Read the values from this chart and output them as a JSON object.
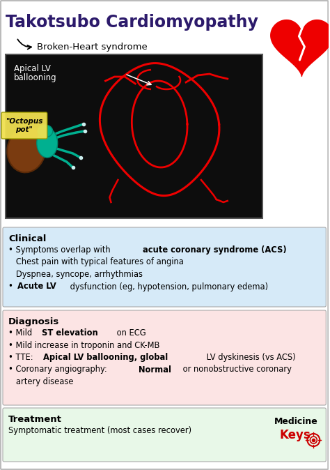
{
  "title": "Takotsubo Cardiomyopathy",
  "title_color": "#2c1a6b",
  "bg_color": "#ffffff",
  "border_color": "#bbbbbb",
  "image_label_line1": "Apical LV",
  "image_label_line2": "ballooning",
  "octopus_label": "\"Octopus\npot\"",
  "sections": [
    {
      "title": "Clinical",
      "bg_color": "#d6eaf8",
      "bullets": [
        [
          {
            "text": "• Symptoms overlap with ",
            "bold": false
          },
          {
            "text": "acute coronary syndrome (ACS)",
            "bold": true
          }
        ],
        [
          {
            "text": "   Chest pain with typical features of angina",
            "bold": false
          }
        ],
        [
          {
            "text": "   Dyspnea, syncope, arrhythmias",
            "bold": false
          }
        ],
        [
          {
            "text": "• ",
            "bold": false
          },
          {
            "text": "Acute LV",
            "bold": true
          },
          {
            "text": " dysfunction (eg, hypotension, pulmonary edema)",
            "bold": false
          }
        ]
      ]
    },
    {
      "title": "Diagnosis",
      "bg_color": "#fce4e4",
      "bullets": [
        [
          {
            "text": "• Mild ",
            "bold": false
          },
          {
            "text": "ST elevation",
            "bold": true
          },
          {
            "text": " on ECG",
            "bold": false
          }
        ],
        [
          {
            "text": "• Mild increase in troponin and CK-MB",
            "bold": false
          }
        ],
        [
          {
            "text": "• TTE: ",
            "bold": false
          },
          {
            "text": "Apical LV ballooning, global",
            "bold": true
          },
          {
            "text": " LV dyskinesis (vs ACS)",
            "bold": false
          }
        ],
        [
          {
            "text": "• Coronary angiography: ",
            "bold": false
          },
          {
            "text": "Normal",
            "bold": true
          },
          {
            "text": " or nonobstructive coronary",
            "bold": false
          }
        ],
        [
          {
            "text": "   artery disease",
            "bold": false
          }
        ]
      ]
    },
    {
      "title": "Treatment",
      "bg_color": "#e8f8e8",
      "bullets": [
        [
          {
            "text": "Symptomatic treatment (most cases recover)",
            "bold": false
          }
        ]
      ]
    }
  ],
  "medicine_text1": "Medicine",
  "medicine_text2": "Keys",
  "medicine_color": "#cc0000",
  "black_color": "#111111"
}
